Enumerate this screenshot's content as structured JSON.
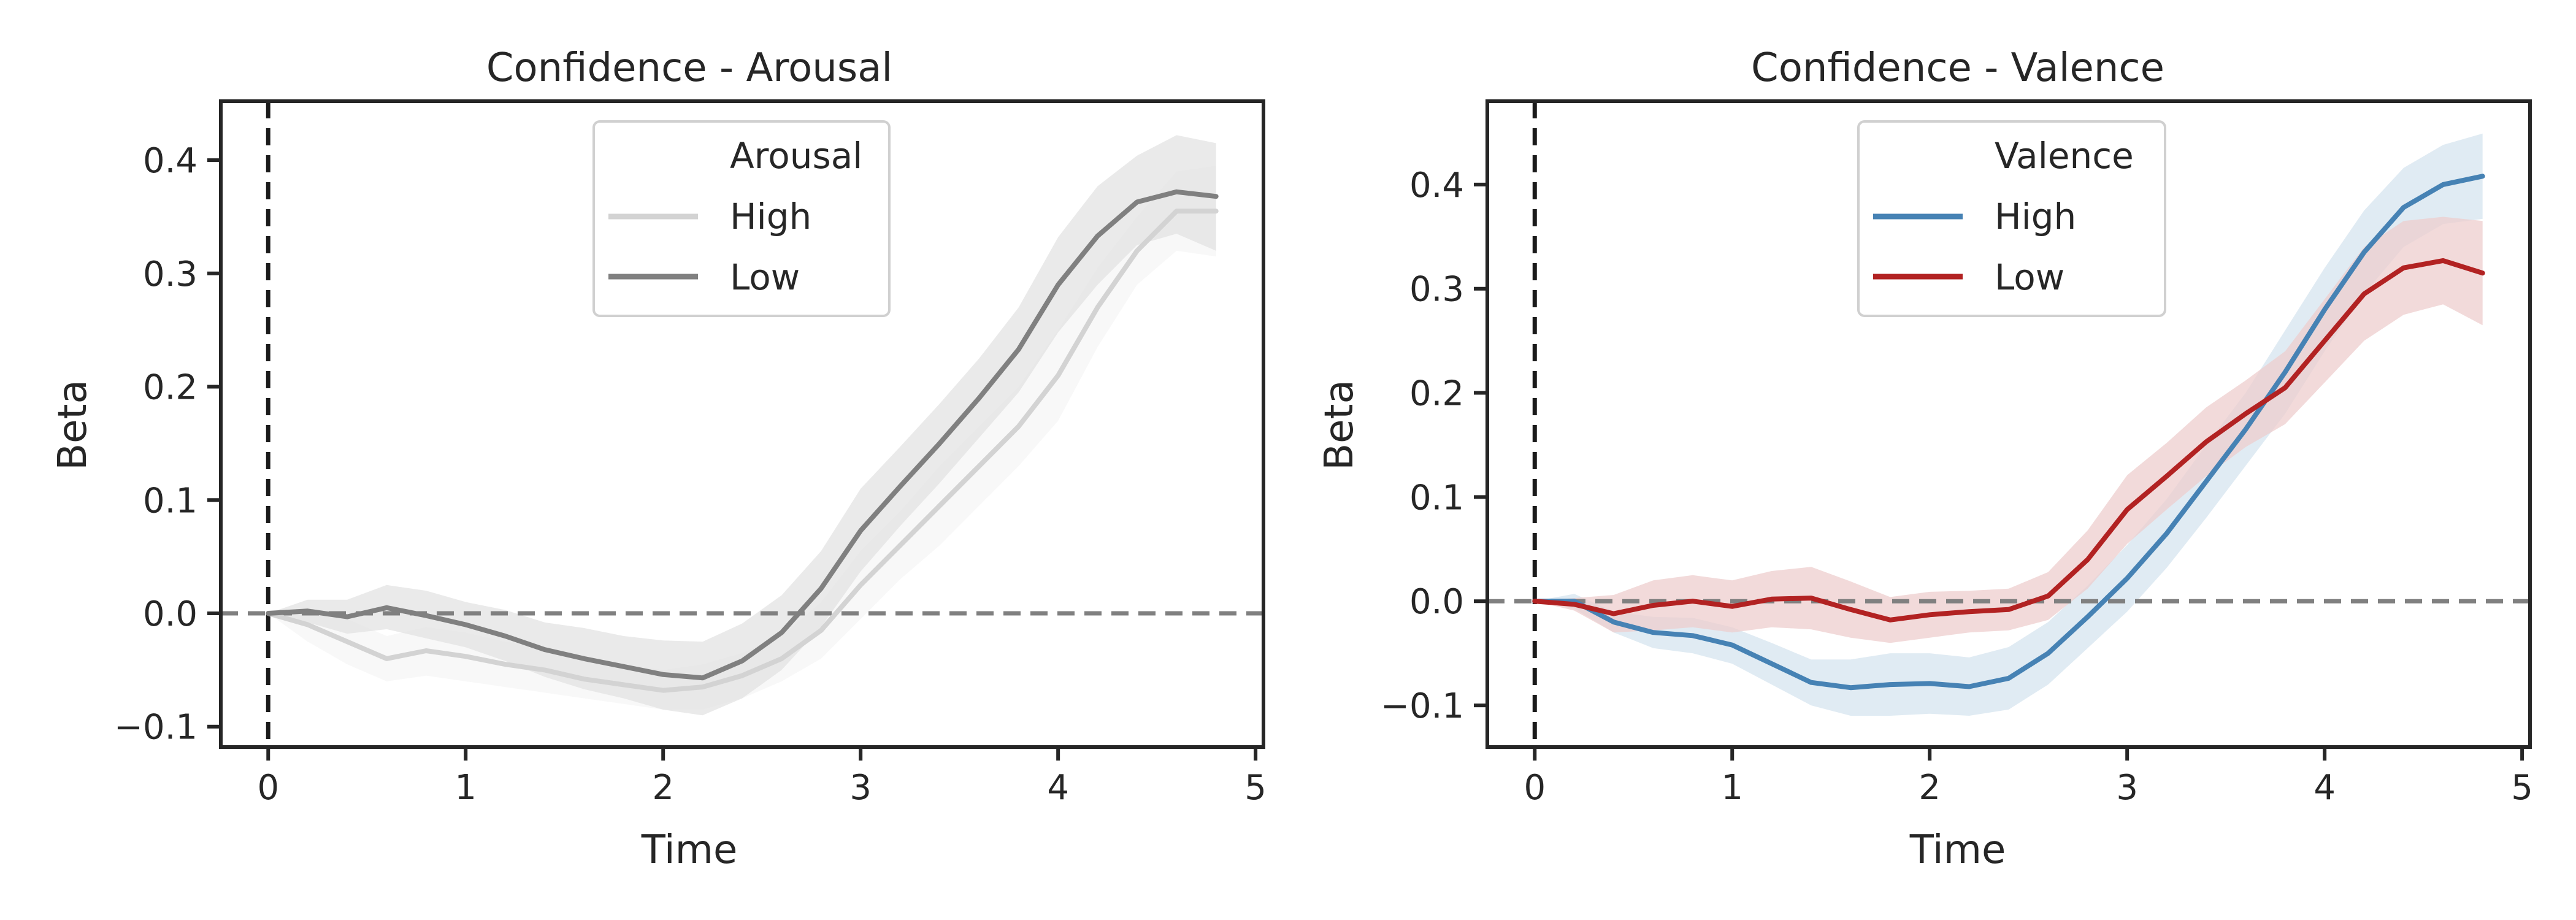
{
  "chart_data": [
    {
      "type": "line",
      "title": "Confidence - Arousal",
      "xlabel": "Time",
      "ylabel": "Beta",
      "xlim": [
        -0.24,
        5.04
      ],
      "ylim": [
        -0.118,
        0.452
      ],
      "xticks": [
        0,
        1,
        2,
        3,
        4,
        5
      ],
      "xtick_labels": [
        "0",
        "1",
        "2",
        "3",
        "4",
        "5"
      ],
      "yticks": [
        -0.1,
        0.0,
        0.1,
        0.2,
        0.3,
        0.4
      ],
      "ytick_labels": [
        "−0.1",
        "0.0",
        "0.1",
        "0.2",
        "0.3",
        "0.4"
      ],
      "reference_lines": {
        "vertical_x": 0,
        "horizontal_y": 0
      },
      "legend": {
        "title": "Arousal",
        "position": "top-center"
      },
      "x": [
        0,
        0.2,
        0.4,
        0.6,
        0.8,
        1.0,
        1.2,
        1.4,
        1.6,
        1.8,
        2.0,
        2.2,
        2.4,
        2.6,
        2.8,
        3.0,
        3.2,
        3.4,
        3.6,
        3.8,
        4.0,
        4.2,
        4.4,
        4.6,
        4.8
      ],
      "series": [
        {
          "name": "High",
          "color": "#d3d3d3",
          "values": [
            0,
            -0.01,
            -0.025,
            -0.04,
            -0.033,
            -0.038,
            -0.045,
            -0.05,
            -0.058,
            -0.063,
            -0.068,
            -0.065,
            -0.055,
            -0.04,
            -0.015,
            0.025,
            0.06,
            0.095,
            0.13,
            0.165,
            0.21,
            0.27,
            0.32,
            0.355,
            0.355
          ],
          "lower": [
            0,
            -0.025,
            -0.045,
            -0.06,
            -0.055,
            -0.06,
            -0.065,
            -0.07,
            -0.075,
            -0.08,
            -0.085,
            -0.085,
            -0.075,
            -0.06,
            -0.04,
            -0.005,
            0.03,
            0.06,
            0.095,
            0.13,
            0.17,
            0.235,
            0.29,
            0.32,
            0.315
          ],
          "upper": [
            0,
            0.005,
            -0.005,
            -0.02,
            -0.012,
            -0.017,
            -0.025,
            -0.03,
            -0.04,
            -0.045,
            -0.05,
            -0.045,
            -0.035,
            -0.02,
            0.01,
            0.055,
            0.09,
            0.13,
            0.165,
            0.2,
            0.25,
            0.305,
            0.35,
            0.39,
            0.395
          ]
        },
        {
          "name": "Low",
          "color": "#808080",
          "values": [
            0,
            0.002,
            -0.003,
            0.005,
            -0.002,
            -0.01,
            -0.02,
            -0.032,
            -0.04,
            -0.047,
            -0.054,
            -0.057,
            -0.042,
            -0.017,
            0.022,
            0.073,
            0.112,
            0.15,
            0.19,
            0.233,
            0.29,
            0.333,
            0.363,
            0.372,
            0.368
          ],
          "lower": [
            0,
            -0.008,
            -0.018,
            -0.014,
            -0.022,
            -0.03,
            -0.042,
            -0.056,
            -0.067,
            -0.075,
            -0.085,
            -0.09,
            -0.075,
            -0.05,
            -0.012,
            0.037,
            0.077,
            0.115,
            0.155,
            0.195,
            0.248,
            0.29,
            0.325,
            0.335,
            0.32
          ],
          "upper": [
            0,
            0.012,
            0.012,
            0.025,
            0.02,
            0.01,
            0.003,
            -0.008,
            -0.013,
            -0.02,
            -0.024,
            -0.025,
            -0.009,
            0.016,
            0.055,
            0.11,
            0.147,
            0.185,
            0.225,
            0.27,
            0.332,
            0.377,
            0.404,
            0.422,
            0.415
          ]
        }
      ]
    },
    {
      "type": "line",
      "title": "Confidence - Valence",
      "xlabel": "Time",
      "ylabel": "Beta",
      "xlim": [
        -0.24,
        5.04
      ],
      "ylim": [
        -0.14,
        0.48
      ],
      "xticks": [
        0,
        1,
        2,
        3,
        4,
        5
      ],
      "xtick_labels": [
        "0",
        "1",
        "2",
        "3",
        "4",
        "5"
      ],
      "yticks": [
        -0.1,
        0.0,
        0.1,
        0.2,
        0.3,
        0.4
      ],
      "ytick_labels": [
        "−0.1",
        "0.0",
        "0.1",
        "0.2",
        "0.3",
        "0.4"
      ],
      "reference_lines": {
        "vertical_x": 0,
        "horizontal_y": 0
      },
      "legend": {
        "title": "Valence",
        "position": "top-center"
      },
      "x": [
        0,
        0.2,
        0.4,
        0.6,
        0.8,
        1.0,
        1.2,
        1.4,
        1.6,
        1.8,
        2.0,
        2.2,
        2.4,
        2.6,
        2.8,
        3.0,
        3.2,
        3.4,
        3.6,
        3.8,
        4.0,
        4.2,
        4.4,
        4.6,
        4.8
      ],
      "series": [
        {
          "name": "High",
          "color": "#4682b4",
          "values": [
            0,
            0,
            -0.02,
            -0.03,
            -0.033,
            -0.042,
            -0.06,
            -0.078,
            -0.083,
            -0.08,
            -0.079,
            -0.082,
            -0.074,
            -0.05,
            -0.015,
            0.022,
            0.065,
            0.115,
            0.165,
            0.22,
            0.28,
            0.335,
            0.378,
            0.4,
            0.408
          ],
          "lower": [
            0,
            -0.007,
            -0.03,
            -0.045,
            -0.05,
            -0.06,
            -0.08,
            -0.1,
            -0.11,
            -0.11,
            -0.108,
            -0.11,
            -0.104,
            -0.08,
            -0.045,
            -0.01,
            0.032,
            0.08,
            0.13,
            0.18,
            0.24,
            0.295,
            0.34,
            0.362,
            0.367
          ],
          "upper": [
            0,
            0.007,
            -0.01,
            -0.015,
            -0.016,
            -0.025,
            -0.04,
            -0.056,
            -0.056,
            -0.05,
            -0.05,
            -0.054,
            -0.044,
            -0.02,
            0.015,
            0.054,
            0.098,
            0.15,
            0.2,
            0.26,
            0.32,
            0.375,
            0.416,
            0.438,
            0.449
          ]
        },
        {
          "name": "Low",
          "color": "#b22222",
          "values": [
            0,
            -0.003,
            -0.012,
            -0.004,
            0,
            -0.005,
            0.002,
            0.003,
            -0.008,
            -0.018,
            -0.013,
            -0.01,
            -0.008,
            0.005,
            0.04,
            0.088,
            0.12,
            0.153,
            0.18,
            0.205,
            0.25,
            0.295,
            0.32,
            0.327,
            0.315
          ],
          "lower": [
            0,
            -0.009,
            -0.03,
            -0.028,
            -0.025,
            -0.03,
            -0.025,
            -0.027,
            -0.035,
            -0.04,
            -0.035,
            -0.03,
            -0.028,
            -0.018,
            0.012,
            0.055,
            0.088,
            0.12,
            0.148,
            0.17,
            0.21,
            0.25,
            0.275,
            0.285,
            0.265
          ],
          "upper": [
            0,
            0.003,
            0.006,
            0.02,
            0.025,
            0.02,
            0.029,
            0.033,
            0.019,
            0.004,
            0.009,
            0.01,
            0.012,
            0.028,
            0.068,
            0.121,
            0.152,
            0.186,
            0.212,
            0.24,
            0.29,
            0.34,
            0.365,
            0.369,
            0.365
          ]
        }
      ]
    }
  ]
}
